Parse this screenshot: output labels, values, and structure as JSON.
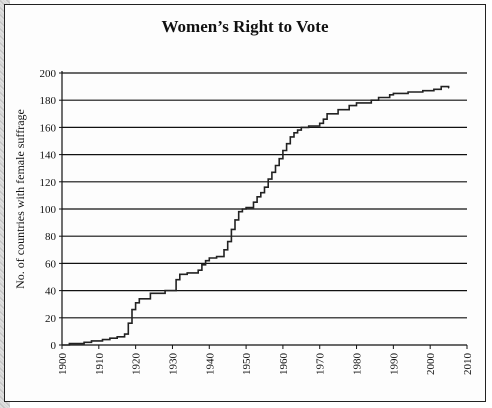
{
  "chart_data": {
    "type": "line",
    "title": "Women’s Right to Vote",
    "xlabel": "",
    "ylabel": "No. of countries with female suffrage",
    "xlim": [
      1900,
      2010
    ],
    "ylim": [
      0,
      200
    ],
    "x_ticks": [
      "1900",
      "1910",
      "1920",
      "1930",
      "1940",
      "1950",
      "1960",
      "1970",
      "1980",
      "1990",
      "2000",
      "2010"
    ],
    "y_ticks": [
      "0",
      "20",
      "40",
      "60",
      "80",
      "100",
      "120",
      "140",
      "160",
      "180",
      "200"
    ],
    "grid": "horizontal",
    "legend": "none",
    "line_style": "step",
    "colors": {
      "line": "#222222",
      "grid": "#111111",
      "axis": "#111111"
    },
    "series": [
      {
        "x": [
          1900,
          1902,
          1906,
          1908,
          1911,
          1913,
          1915,
          1917,
          1918,
          1919,
          1920,
          1921,
          1924,
          1928,
          1931,
          1932,
          1934,
          1937,
          1938,
          1939,
          1940,
          1942,
          1944,
          1945,
          1946,
          1947,
          1948,
          1949,
          1950,
          1952,
          1953,
          1954,
          1955,
          1956,
          1957,
          1958,
          1959,
          1960,
          1961,
          1962,
          1963,
          1964,
          1965,
          1967,
          1970,
          1971,
          1972,
          1975,
          1978,
          1980,
          1984,
          1986,
          1989,
          1990,
          1994,
          1998,
          2001,
          2003,
          2005
        ],
        "values": [
          0,
          1,
          2,
          3,
          4,
          5,
          6,
          8,
          16,
          26,
          31,
          34,
          38,
          40,
          48,
          52,
          53,
          55,
          59,
          62,
          64,
          65,
          70,
          76,
          85,
          92,
          98,
          100,
          101,
          105,
          109,
          112,
          116,
          122,
          127,
          132,
          137,
          143,
          148,
          153,
          156,
          158,
          160,
          161,
          163,
          166,
          170,
          173,
          176,
          178,
          180,
          182,
          184,
          185,
          186,
          187,
          188,
          190,
          189
        ]
      }
    ]
  }
}
